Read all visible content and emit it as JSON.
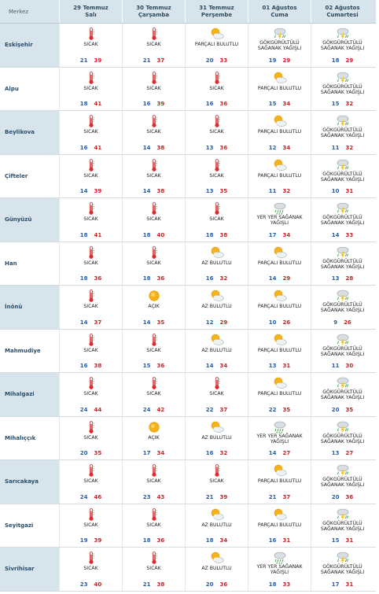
{
  "header": {
    "corner_label": "Merkez",
    "days": [
      {
        "date": "29 Temmuz",
        "weekday": "Salı"
      },
      {
        "date": "30 Temmuz",
        "weekday": "Çarşamba"
      },
      {
        "date": "31 Temmuz",
        "weekday": "Perşembe"
      },
      {
        "date": "01 Ağustos",
        "weekday": "Cuma"
      },
      {
        "date": "02 Ağustos",
        "weekday": "Cumartesi"
      }
    ]
  },
  "colors": {
    "header_bg": "#d7e4ec",
    "low_temp": "#2a5fa8",
    "high_temp": "#d02020",
    "city_text": "#2a4e6c"
  },
  "rows": [
    {
      "city": "Eskişehir",
      "days": [
        {
          "icon": "thermometer-icon",
          "cond": "SICAK",
          "lo": "21",
          "hi": "39"
        },
        {
          "icon": "thermometer-icon",
          "cond": "SICAK",
          "lo": "21",
          "hi": "37"
        },
        {
          "icon": "partly-cloudy-icon",
          "cond": "PARÇALI BULUTLU",
          "lo": "20",
          "hi": "33"
        },
        {
          "icon": "thunderstorm-icon",
          "cond": "GÖKGÜRÜLTÜLÜ SAĞANAK YAĞIŞLI",
          "lo": "19",
          "hi": "29"
        },
        {
          "icon": "thunderstorm-icon",
          "cond": "GÖKGÜRÜLTÜLÜ SAĞANAK YAĞIŞLI",
          "lo": "18",
          "hi": "29"
        }
      ]
    },
    {
      "city": "Alpu",
      "days": [
        {
          "icon": "thermometer-icon",
          "cond": "SICAK",
          "lo": "18",
          "hi": "41"
        },
        {
          "icon": "thermometer-icon",
          "cond": "SICAK",
          "lo": "16",
          "hi": "39"
        },
        {
          "icon": "thermometer-icon",
          "cond": "SICAK",
          "lo": "16",
          "hi": "36"
        },
        {
          "icon": "partly-cloudy-icon",
          "cond": "PARÇALI BULUTLU",
          "lo": "15",
          "hi": "34"
        },
        {
          "icon": "thunderstorm-icon",
          "cond": "GÖKGÜRÜLTÜLÜ SAĞANAK YAĞIŞLI",
          "lo": "15",
          "hi": "32"
        }
      ]
    },
    {
      "city": "Beylikova",
      "days": [
        {
          "icon": "thermometer-icon",
          "cond": "SICAK",
          "lo": "16",
          "hi": "41"
        },
        {
          "icon": "thermometer-icon",
          "cond": "SICAK",
          "lo": "14",
          "hi": "38"
        },
        {
          "icon": "thermometer-icon",
          "cond": "SICAK",
          "lo": "13",
          "hi": "36"
        },
        {
          "icon": "partly-cloudy-icon",
          "cond": "PARÇALI BULUTLU",
          "lo": "12",
          "hi": "34"
        },
        {
          "icon": "thunderstorm-icon",
          "cond": "GÖKGÜRÜLTÜLÜ SAĞANAK YAĞIŞLI",
          "lo": "11",
          "hi": "32"
        }
      ]
    },
    {
      "city": "Çifteler",
      "days": [
        {
          "icon": "thermometer-icon",
          "cond": "SICAK",
          "lo": "14",
          "hi": "39"
        },
        {
          "icon": "thermometer-icon",
          "cond": "SICAK",
          "lo": "14",
          "hi": "38"
        },
        {
          "icon": "thermometer-icon",
          "cond": "SICAK",
          "lo": "13",
          "hi": "35"
        },
        {
          "icon": "partly-cloudy-icon",
          "cond": "PARÇALI BULUTLU",
          "lo": "11",
          "hi": "32"
        },
        {
          "icon": "thunderstorm-icon",
          "cond": "GÖKGÜRÜLTÜLÜ SAĞANAK YAĞIŞLI",
          "lo": "10",
          "hi": "31"
        }
      ]
    },
    {
      "city": "Günyüzü",
      "days": [
        {
          "icon": "thermometer-icon",
          "cond": "SICAK",
          "lo": "18",
          "hi": "41"
        },
        {
          "icon": "thermometer-icon",
          "cond": "SICAK",
          "lo": "18",
          "hi": "40"
        },
        {
          "icon": "thermometer-icon",
          "cond": "SICAK",
          "lo": "18",
          "hi": "38"
        },
        {
          "icon": "rain-icon",
          "cond": "YER YER SAĞANAK YAĞIŞLI",
          "lo": "17",
          "hi": "34"
        },
        {
          "icon": "thunderstorm-icon",
          "cond": "GÖKGÜRÜLTÜLÜ SAĞANAK YAĞIŞLI",
          "lo": "14",
          "hi": "33"
        }
      ]
    },
    {
      "city": "Han",
      "days": [
        {
          "icon": "thermometer-icon",
          "cond": "SICAK",
          "lo": "18",
          "hi": "36"
        },
        {
          "icon": "thermometer-icon",
          "cond": "SICAK",
          "lo": "18",
          "hi": "36"
        },
        {
          "icon": "partly-cloudy-icon",
          "cond": "AZ BULUTLU",
          "lo": "16",
          "hi": "32"
        },
        {
          "icon": "partly-cloudy-icon",
          "cond": "PARÇALI BULUTLU",
          "lo": "14",
          "hi": "29"
        },
        {
          "icon": "thunderstorm-icon",
          "cond": "GÖKGÜRÜLTÜLÜ SAĞANAK YAĞIŞLI",
          "lo": "13",
          "hi": "28"
        }
      ]
    },
    {
      "city": "İnönü",
      "days": [
        {
          "icon": "thermometer-icon",
          "cond": "SICAK",
          "lo": "14",
          "hi": "37"
        },
        {
          "icon": "sun-icon",
          "cond": "AÇIK",
          "lo": "14",
          "hi": "35"
        },
        {
          "icon": "partly-cloudy-icon",
          "cond": "AZ BULUTLU",
          "lo": "12",
          "hi": "29"
        },
        {
          "icon": "partly-cloudy-icon",
          "cond": "PARÇALI BULUTLU",
          "lo": "10",
          "hi": "26"
        },
        {
          "icon": "thunderstorm-icon",
          "cond": "GÖKGÜRÜLTÜLÜ SAĞANAK YAĞIŞLI",
          "lo": "9",
          "hi": "26"
        }
      ]
    },
    {
      "city": "Mahmudiye",
      "days": [
        {
          "icon": "thermometer-icon",
          "cond": "SICAK",
          "lo": "16",
          "hi": "38"
        },
        {
          "icon": "thermometer-icon",
          "cond": "SICAK",
          "lo": "15",
          "hi": "36"
        },
        {
          "icon": "partly-cloudy-icon",
          "cond": "AZ BULUTLU",
          "lo": "14",
          "hi": "34"
        },
        {
          "icon": "partly-cloudy-icon",
          "cond": "PARÇALI BULUTLU",
          "lo": "13",
          "hi": "31"
        },
        {
          "icon": "thunderstorm-icon",
          "cond": "GÖKGÜRÜLTÜLÜ SAĞANAK YAĞIŞLI",
          "lo": "11",
          "hi": "30"
        }
      ]
    },
    {
      "city": "Mihalgazi",
      "days": [
        {
          "icon": "thermometer-icon",
          "cond": "SICAK",
          "lo": "24",
          "hi": "44"
        },
        {
          "icon": "thermometer-icon",
          "cond": "SICAK",
          "lo": "24",
          "hi": "42"
        },
        {
          "icon": "thermometer-icon",
          "cond": "SICAK",
          "lo": "22",
          "hi": "37"
        },
        {
          "icon": "partly-cloudy-icon",
          "cond": "PARÇALI BULUTLU",
          "lo": "22",
          "hi": "35"
        },
        {
          "icon": "thunderstorm-icon",
          "cond": "GÖKGÜRÜLTÜLÜ SAĞANAK YAĞIŞLI",
          "lo": "20",
          "hi": "35"
        }
      ]
    },
    {
      "city": "Mihalıççık",
      "days": [
        {
          "icon": "thermometer-icon",
          "cond": "SICAK",
          "lo": "20",
          "hi": "35"
        },
        {
          "icon": "sun-icon",
          "cond": "AÇIK",
          "lo": "17",
          "hi": "34"
        },
        {
          "icon": "partly-cloudy-icon",
          "cond": "AZ BULUTLU",
          "lo": "16",
          "hi": "32"
        },
        {
          "icon": "rain-icon",
          "cond": "YER YER SAĞANAK YAĞIŞLI",
          "lo": "14",
          "hi": "27"
        },
        {
          "icon": "thunderstorm-icon",
          "cond": "GÖKGÜRÜLTÜLÜ SAĞANAK YAĞIŞLI",
          "lo": "13",
          "hi": "27"
        }
      ]
    },
    {
      "city": "Sarıcakaya",
      "days": [
        {
          "icon": "thermometer-icon",
          "cond": "SICAK",
          "lo": "24",
          "hi": "46"
        },
        {
          "icon": "thermometer-icon",
          "cond": "SICAK",
          "lo": "23",
          "hi": "43"
        },
        {
          "icon": "thermometer-icon",
          "cond": "SICAK",
          "lo": "21",
          "hi": "39"
        },
        {
          "icon": "partly-cloudy-icon",
          "cond": "PARÇALI BULUTLU",
          "lo": "21",
          "hi": "37"
        },
        {
          "icon": "thunderstorm-icon",
          "cond": "GÖKGÜRÜLTÜLÜ SAĞANAK YAĞIŞLI",
          "lo": "20",
          "hi": "36"
        }
      ]
    },
    {
      "city": "Seyitgazi",
      "days": [
        {
          "icon": "thermometer-icon",
          "cond": "SICAK",
          "lo": "19",
          "hi": "39"
        },
        {
          "icon": "thermometer-icon",
          "cond": "SICAK",
          "lo": "18",
          "hi": "36"
        },
        {
          "icon": "partly-cloudy-icon",
          "cond": "AZ BULUTLU",
          "lo": "18",
          "hi": "34"
        },
        {
          "icon": "partly-cloudy-icon",
          "cond": "PARÇALI BULUTLU",
          "lo": "16",
          "hi": "31"
        },
        {
          "icon": "thunderstorm-icon",
          "cond": "GÖKGÜRÜLTÜLÜ SAĞANAK YAĞIŞLI",
          "lo": "15",
          "hi": "31"
        }
      ]
    },
    {
      "city": "Sivrihisar",
      "days": [
        {
          "icon": "thermometer-icon",
          "cond": "SICAK",
          "lo": "23",
          "hi": "40"
        },
        {
          "icon": "thermometer-icon",
          "cond": "SICAK",
          "lo": "21",
          "hi": "38"
        },
        {
          "icon": "partly-cloudy-icon",
          "cond": "AZ BULUTLU",
          "lo": "20",
          "hi": "36"
        },
        {
          "icon": "rain-icon",
          "cond": "YER YER SAĞANAK YAĞIŞLI",
          "lo": "18",
          "hi": "33"
        },
        {
          "icon": "thunderstorm-icon",
          "cond": "GÖKGÜRÜLTÜLÜ SAĞANAK YAĞIŞLI",
          "lo": "17",
          "hi": "31"
        }
      ]
    }
  ]
}
